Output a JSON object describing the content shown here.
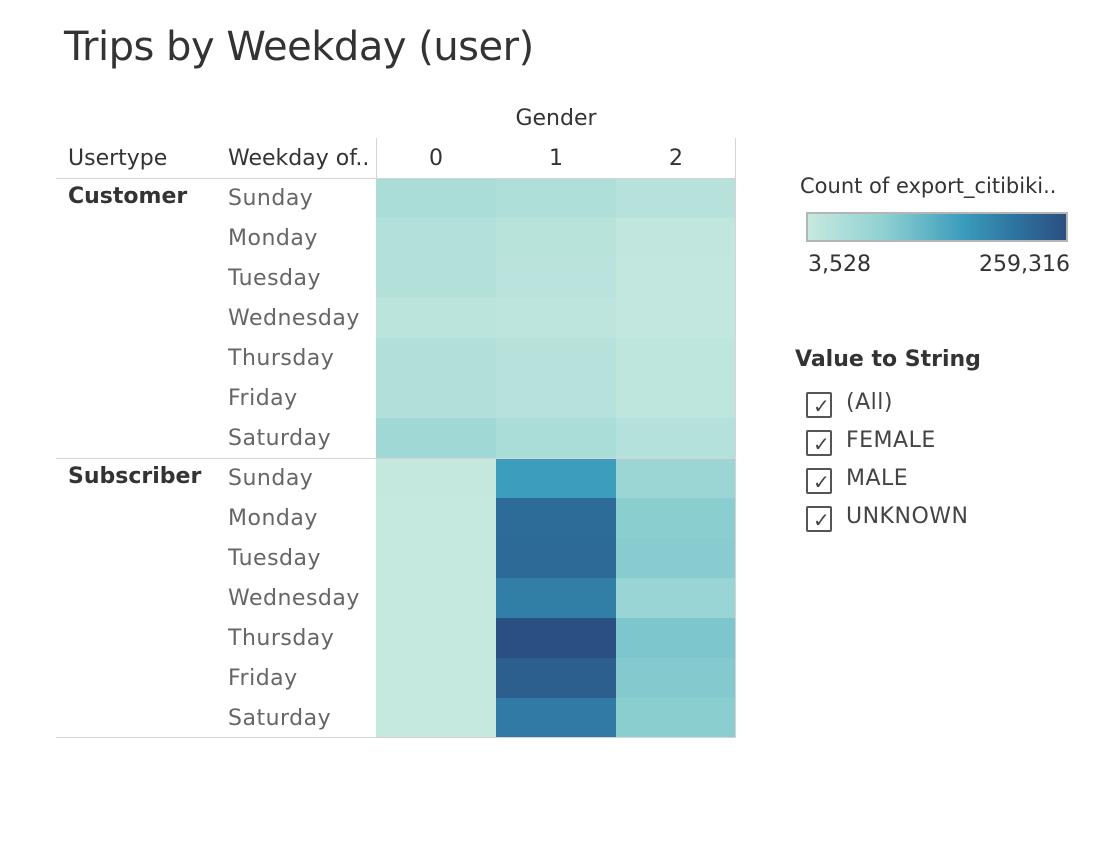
{
  "title": "Trips by Weekday (user)",
  "headers": {
    "usertype": "Usertype",
    "weekday": "Weekday of..",
    "gender_group": "Gender"
  },
  "legend": {
    "title": "Count of export_citibiki..",
    "min_label": "3,528",
    "max_label": "259,316",
    "min_value": 3528,
    "max_value": 259316,
    "colors": [
      "#c6e9df",
      "#8ed0d1",
      "#3b9cbc",
      "#2e74a0",
      "#2a4f80"
    ]
  },
  "filter": {
    "title": "Value to String",
    "items": [
      {
        "label": "(All)",
        "checked": true
      },
      {
        "label": "FEMALE",
        "checked": true
      },
      {
        "label": "MALE",
        "checked": true
      },
      {
        "label": "UNKNOWN",
        "checked": true
      }
    ]
  },
  "chart_data": {
    "type": "heatmap",
    "title": "Trips by Weekday (user)",
    "x_title": "Gender",
    "x_categories": [
      "0",
      "1",
      "2"
    ],
    "row_groups": [
      {
        "name": "Customer",
        "rows": [
          "Sunday",
          "Monday",
          "Tuesday",
          "Wednesday",
          "Thursday",
          "Friday",
          "Saturday"
        ],
        "values": [
          [
            34000,
            30000,
            22000
          ],
          [
            26000,
            20000,
            10000
          ],
          [
            25000,
            18000,
            9000
          ],
          [
            17000,
            14000,
            8000
          ],
          [
            27000,
            21000,
            12000
          ],
          [
            28000,
            22000,
            12000
          ],
          [
            48000,
            36000,
            24000
          ]
        ]
      },
      {
        "name": "Subscriber",
        "rows": [
          "Sunday",
          "Monday",
          "Tuesday",
          "Wednesday",
          "Thursday",
          "Friday",
          "Saturday"
        ],
        "values": [
          [
            6000,
            130000,
            52000
          ],
          [
            5000,
            210000,
            70000
          ],
          [
            5000,
            212000,
            72000
          ],
          [
            5000,
            180000,
            55000
          ],
          [
            5000,
            259316,
            80000
          ],
          [
            5000,
            232000,
            76000
          ],
          [
            5000,
            185000,
            70000
          ]
        ]
      }
    ],
    "color_range": [
      3528,
      259316
    ]
  }
}
